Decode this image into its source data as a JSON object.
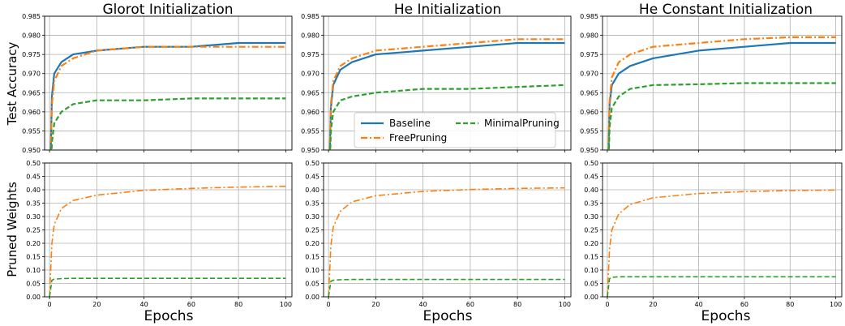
{
  "chart_data": {
    "type": "line",
    "layout": "2x3 grid of line plots sharing x axis per column",
    "column_titles": [
      "Glorot Initialization",
      "He Initialization",
      "He Constant Initialization"
    ],
    "row_ylabels": [
      "Test Accuracy",
      "Pruned Weights"
    ],
    "xlabel": "Epochs",
    "xlim": [
      0,
      100
    ],
    "xticks": [
      0,
      20,
      40,
      60,
      80,
      100
    ],
    "grid": true,
    "rows": [
      {
        "ylabel": "Test Accuracy",
        "ylim": [
          0.95,
          0.985
        ],
        "yticks": [
          0.95,
          0.955,
          0.96,
          0.965,
          0.97,
          0.975,
          0.98,
          0.985
        ],
        "ytick_labels": [
          "0.950",
          "0.955",
          "0.960",
          "0.965",
          "0.970",
          "0.975",
          "0.980",
          "0.985"
        ],
        "legend": {
          "placement": "lower-center of middle panel",
          "entries": [
            "Baseline",
            "FreePruning",
            "MinimalPruning"
          ]
        },
        "panels": [
          {
            "title": "Glorot Initialization",
            "series": [
              {
                "name": "Baseline",
                "x": [
                  0,
                  1,
                  2,
                  5,
                  10,
                  20,
                  40,
                  60,
                  80,
                  100
                ],
                "y": [
                  0.935,
                  0.964,
                  0.97,
                  0.973,
                  0.975,
                  0.976,
                  0.977,
                  0.977,
                  0.978,
                  0.978
                ]
              },
              {
                "name": "FreePruning",
                "x": [
                  0,
                  1,
                  2,
                  5,
                  10,
                  20,
                  40,
                  60,
                  80,
                  100
                ],
                "y": [
                  0.935,
                  0.962,
                  0.968,
                  0.972,
                  0.974,
                  0.976,
                  0.977,
                  0.977,
                  0.977,
                  0.977
                ]
              },
              {
                "name": "MinimalPruning",
                "x": [
                  0,
                  1,
                  2,
                  5,
                  10,
                  20,
                  40,
                  60,
                  80,
                  100
                ],
                "y": [
                  0.935,
                  0.952,
                  0.957,
                  0.96,
                  0.962,
                  0.963,
                  0.963,
                  0.9635,
                  0.9635,
                  0.9635
                ]
              }
            ]
          },
          {
            "title": "He Initialization",
            "series": [
              {
                "name": "Baseline",
                "x": [
                  0,
                  1,
                  2,
                  5,
                  10,
                  20,
                  40,
                  60,
                  80,
                  100
                ],
                "y": [
                  0.935,
                  0.961,
                  0.967,
                  0.971,
                  0.973,
                  0.975,
                  0.976,
                  0.977,
                  0.978,
                  0.978
                ]
              },
              {
                "name": "FreePruning",
                "x": [
                  0,
                  1,
                  2,
                  5,
                  10,
                  20,
                  40,
                  60,
                  80,
                  100
                ],
                "y": [
                  0.935,
                  0.962,
                  0.968,
                  0.972,
                  0.974,
                  0.976,
                  0.977,
                  0.978,
                  0.979,
                  0.979
                ]
              },
              {
                "name": "MinimalPruning",
                "x": [
                  0,
                  1,
                  2,
                  5,
                  10,
                  20,
                  40,
                  60,
                  80,
                  100
                ],
                "y": [
                  0.935,
                  0.955,
                  0.96,
                  0.963,
                  0.964,
                  0.965,
                  0.966,
                  0.966,
                  0.9665,
                  0.967
                ]
              }
            ]
          },
          {
            "title": "He Constant Initialization",
            "series": [
              {
                "name": "Baseline",
                "x": [
                  0,
                  1,
                  2,
                  5,
                  10,
                  20,
                  40,
                  60,
                  80,
                  100
                ],
                "y": [
                  0.935,
                  0.962,
                  0.967,
                  0.97,
                  0.972,
                  0.974,
                  0.976,
                  0.977,
                  0.978,
                  0.978
                ]
              },
              {
                "name": "FreePruning",
                "x": [
                  0,
                  1,
                  2,
                  5,
                  10,
                  20,
                  40,
                  60,
                  80,
                  100
                ],
                "y": [
                  0.935,
                  0.963,
                  0.969,
                  0.973,
                  0.975,
                  0.977,
                  0.978,
                  0.979,
                  0.9795,
                  0.9795
                ]
              },
              {
                "name": "MinimalPruning",
                "x": [
                  0,
                  1,
                  2,
                  5,
                  10,
                  20,
                  40,
                  60,
                  80,
                  100
                ],
                "y": [
                  0.935,
                  0.956,
                  0.961,
                  0.964,
                  0.966,
                  0.967,
                  0.9672,
                  0.9675,
                  0.9675,
                  0.9675
                ]
              }
            ]
          }
        ]
      },
      {
        "ylabel": "Pruned Weights",
        "ylim": [
          0.0,
          0.5
        ],
        "yticks": [
          0.0,
          0.05,
          0.1,
          0.15,
          0.2,
          0.25,
          0.3,
          0.35,
          0.4,
          0.45,
          0.5
        ],
        "ytick_labels": [
          "0.00",
          "0.05",
          "0.10",
          "0.15",
          "0.20",
          "0.25",
          "0.30",
          "0.35",
          "0.40",
          "0.45",
          "0.50"
        ],
        "panels": [
          {
            "title": "Glorot Initialization",
            "series": [
              {
                "name": "FreePruning",
                "x": [
                  0,
                  1,
                  2,
                  5,
                  10,
                  20,
                  40,
                  60,
                  80,
                  100
                ],
                "y": [
                  0.0,
                  0.2,
                  0.27,
                  0.33,
                  0.36,
                  0.38,
                  0.398,
                  0.405,
                  0.41,
                  0.413
                ]
              },
              {
                "name": "MinimalPruning",
                "x": [
                  0,
                  1,
                  2,
                  5,
                  10,
                  20,
                  40,
                  60,
                  80,
                  100
                ],
                "y": [
                  0.0,
                  0.062,
                  0.066,
                  0.068,
                  0.069,
                  0.069,
                  0.069,
                  0.069,
                  0.069,
                  0.069
                ]
              }
            ]
          },
          {
            "title": "He Initialization",
            "series": [
              {
                "name": "FreePruning",
                "x": [
                  0,
                  1,
                  2,
                  5,
                  10,
                  20,
                  40,
                  60,
                  80,
                  100
                ],
                "y": [
                  0.0,
                  0.19,
                  0.26,
                  0.32,
                  0.355,
                  0.378,
                  0.394,
                  0.401,
                  0.405,
                  0.407
                ]
              },
              {
                "name": "MinimalPruning",
                "x": [
                  0,
                  1,
                  2,
                  5,
                  10,
                  20,
                  40,
                  60,
                  80,
                  100
                ],
                "y": [
                  0.0,
                  0.058,
                  0.062,
                  0.064,
                  0.065,
                  0.065,
                  0.065,
                  0.065,
                  0.065,
                  0.065
                ]
              }
            ]
          },
          {
            "title": "He Constant Initialization",
            "series": [
              {
                "name": "FreePruning",
                "x": [
                  0,
                  1,
                  2,
                  5,
                  10,
                  20,
                  40,
                  60,
                  80,
                  100
                ],
                "y": [
                  0.0,
                  0.18,
                  0.25,
                  0.31,
                  0.345,
                  0.37,
                  0.386,
                  0.393,
                  0.397,
                  0.399
                ]
              },
              {
                "name": "MinimalPruning",
                "x": [
                  0,
                  1,
                  2,
                  5,
                  10,
                  20,
                  40,
                  60,
                  80,
                  100
                ],
                "y": [
                  0.0,
                  0.068,
                  0.073,
                  0.075,
                  0.075,
                  0.075,
                  0.075,
                  0.075,
                  0.075,
                  0.075
                ]
              }
            ]
          }
        ]
      }
    ],
    "series_styles": {
      "Baseline": {
        "color": "#1f77b4",
        "dash": "solid"
      },
      "FreePruning": {
        "color": "#ff7f0e",
        "dash": "dashdot"
      },
      "MinimalPruning": {
        "color": "#2ca02c",
        "dash": "dashed"
      }
    }
  }
}
